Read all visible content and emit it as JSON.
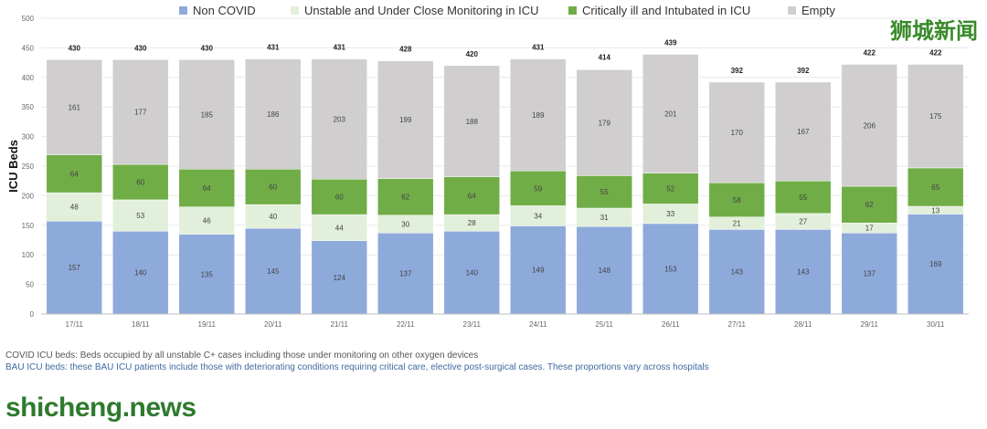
{
  "legend": [
    {
      "label": "Non COVID",
      "color": "#8eaadb"
    },
    {
      "label": "Unstable and Under Close Monitoring in ICU",
      "color": "#e2efda"
    },
    {
      "label": "Critically ill and Intubated in ICU",
      "color": "#70ad47"
    },
    {
      "label": "Empty",
      "color": "#d0cece"
    }
  ],
  "footnotes": {
    "line1": "COVID ICU beds: Beds occupied by all unstable C+ cases including those under monitoring on other oxygen devices",
    "line2": "BAU ICU beds: these BAU ICU patients include those with deteriorating conditions requiring critical care, elective post-surgical cases. These proportions vary across hospitals"
  },
  "watermarks": {
    "left": "shicheng.news",
    "right": "狮城新闻"
  },
  "chart_data": {
    "type": "bar",
    "stacked": true,
    "ylabel": "ICU Beds",
    "ylim": [
      0,
      500
    ],
    "yticks": [
      0,
      50,
      100,
      150,
      200,
      250,
      300,
      350,
      400,
      450,
      500
    ],
    "categories": [
      "17/11",
      "18/11",
      "19/11",
      "20/11",
      "21/11",
      "22/11",
      "23/11",
      "24/11",
      "25/11",
      "26/11",
      "27/11",
      "28/11",
      "29/11",
      "30/11"
    ],
    "series": [
      {
        "name": "Non COVID",
        "color": "#8eaadb",
        "values": [
          157,
          140,
          135,
          145,
          124,
          137,
          140,
          149,
          148,
          153,
          143,
          143,
          137,
          169
        ]
      },
      {
        "name": "Unstable and Under Close Monitoring in ICU",
        "color": "#e2efda",
        "values": [
          48,
          53,
          46,
          40,
          44,
          30,
          28,
          34,
          31,
          33,
          21,
          27,
          17,
          13
        ]
      },
      {
        "name": "Critically ill and Intubated in ICU",
        "color": "#70ad47",
        "values": [
          64,
          60,
          64,
          60,
          60,
          62,
          64,
          59,
          55,
          52,
          58,
          55,
          62,
          65
        ]
      },
      {
        "name": "Empty",
        "color": "#d0cece",
        "values": [
          161,
          177,
          185,
          186,
          203,
          199,
          188,
          189,
          179,
          201,
          170,
          167,
          206,
          175
        ]
      }
    ],
    "totals": [
      430,
      430,
      430,
      431,
      431,
      428,
      420,
      431,
      414,
      439,
      392,
      392,
      422,
      422
    ],
    "legend_position": "top",
    "grid": true
  }
}
